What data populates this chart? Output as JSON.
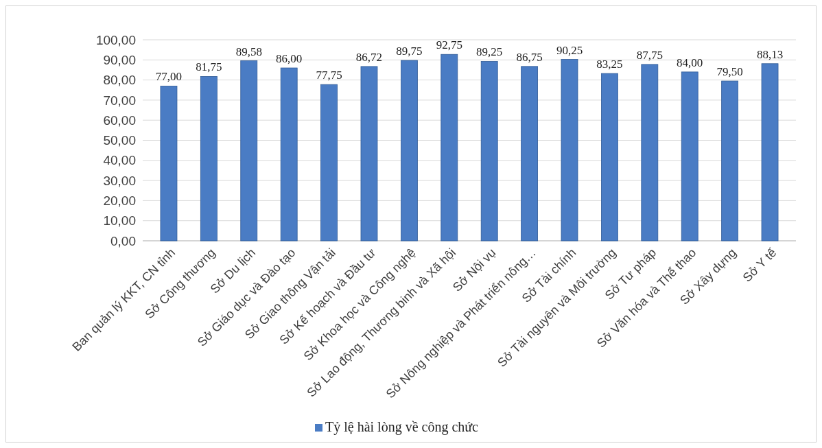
{
  "chart_data": {
    "type": "bar",
    "categories": [
      "Ban quản lý KKT, CN tỉnh",
      "Sở Công thương",
      "Sở Du lịch",
      "Sở Giáo dục và Đào tạo",
      "Sở Giao thông Vận tải",
      "Sở Kế hoạch và Đầu tư",
      "Sở Khoa học và Công nghệ",
      "Sở Lao động, Thương binh và Xã hội",
      "Sở Nội vụ",
      "Sở Nông nghiệp và Phát triển nông…",
      "Sở Tài chính",
      "Sở Tài nguyên và Môi trường",
      "Sở Tư pháp",
      "Sở Văn hóa và Thể thao",
      "Sở Xây dựng",
      "Sở Y tế"
    ],
    "series": [
      {
        "name": "Tỷ lệ hài lòng về công chức",
        "color": "#4a7cc4",
        "values": [
          77.0,
          81.75,
          89.58,
          86.0,
          77.75,
          86.72,
          89.75,
          92.75,
          89.25,
          86.75,
          90.25,
          83.25,
          87.75,
          84.0,
          79.5,
          88.13
        ],
        "value_labels": [
          "77,00",
          "81,75",
          "89,58",
          "86,00",
          "77,75",
          "86,72",
          "89,75",
          "92,75",
          "89,25",
          "86,75",
          "90,25",
          "83,25",
          "87,75",
          "84,00",
          "79,50",
          "88,13"
        ]
      }
    ],
    "ylim": [
      0,
      100
    ],
    "yticks": [
      {
        "value": 0,
        "label": "0,00"
      },
      {
        "value": 10,
        "label": "10,00"
      },
      {
        "value": 20,
        "label": "20,00"
      },
      {
        "value": 30,
        "label": "30,00"
      },
      {
        "value": 40,
        "label": "40,00"
      },
      {
        "value": 50,
        "label": "50,00"
      },
      {
        "value": 60,
        "label": "60,00"
      },
      {
        "value": 70,
        "label": "70,00"
      },
      {
        "value": 80,
        "label": "80,00"
      },
      {
        "value": 90,
        "label": "90,00"
      },
      {
        "value": 100,
        "label": "100,00"
      }
    ],
    "grid": "y",
    "legend": "bottom"
  }
}
